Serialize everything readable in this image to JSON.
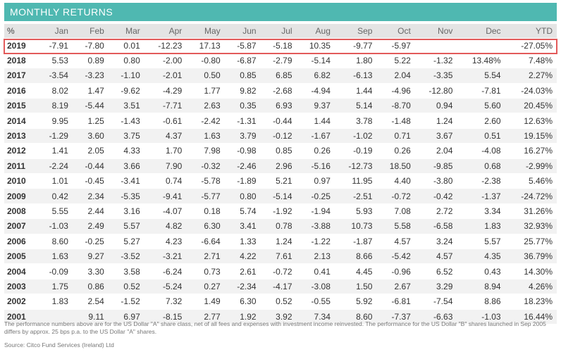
{
  "title": "MONTHLY RETURNS",
  "columns": [
    "%",
    "Jan",
    "Feb",
    "Mar",
    "Apr",
    "May",
    "Jun",
    "Jul",
    "Aug",
    "Sep",
    "Oct",
    "Nov",
    "Dec",
    "YTD"
  ],
  "highlighted_year": "2019",
  "highlight_color": "#e25a5a",
  "header_color": "#4fb8b1",
  "rows": [
    {
      "year": "2019",
      "values": [
        "-7.91",
        "-7.80",
        "0.01",
        "-12.23",
        "17.13",
        "-5.87",
        "-5.18",
        "10.35",
        "-9.77",
        "-5.97",
        "",
        "",
        "-27.05%"
      ]
    },
    {
      "year": "2018",
      "values": [
        "5.53",
        "0.89",
        "0.80",
        "-2.00",
        "-0.80",
        "-6.87",
        "-2.79",
        "-5.14",
        "1.80",
        "5.22",
        "-1.32",
        "13.48%",
        "7.48%"
      ]
    },
    {
      "year": "2017",
      "values": [
        "-3.54",
        "-3.23",
        "-1.10",
        "-2.01",
        "0.50",
        "0.85",
        "6.85",
        "6.82",
        "-6.13",
        "2.04",
        "-3.35",
        "5.54",
        "2.27%"
      ]
    },
    {
      "year": "2016",
      "values": [
        "8.02",
        "1.47",
        "-9.62",
        "-4.29",
        "1.77",
        "9.82",
        "-2.68",
        "-4.94",
        "1.44",
        "-4.96",
        "-12.80",
        "-7.81",
        "-24.03%"
      ]
    },
    {
      "year": "2015",
      "values": [
        "8.19",
        "-5.44",
        "3.51",
        "-7.71",
        "2.63",
        "0.35",
        "6.93",
        "9.37",
        "5.14",
        "-8.70",
        "0.94",
        "5.60",
        "20.45%"
      ]
    },
    {
      "year": "2014",
      "values": [
        "9.95",
        "1.25",
        "-1.43",
        "-0.61",
        "-2.42",
        "-1.31",
        "-0.44",
        "1.44",
        "3.78",
        "-1.48",
        "1.24",
        "2.60",
        "12.63%"
      ]
    },
    {
      "year": "2013",
      "values": [
        "-1.29",
        "3.60",
        "3.75",
        "4.37",
        "1.63",
        "3.79",
        "-0.12",
        "-1.67",
        "-1.02",
        "0.71",
        "3.67",
        "0.51",
        "19.15%"
      ]
    },
    {
      "year": "2012",
      "values": [
        "1.41",
        "2.05",
        "4.33",
        "1.70",
        "7.98",
        "-0.98",
        "0.85",
        "0.26",
        "-0.19",
        "0.26",
        "2.04",
        "-4.08",
        "16.27%"
      ]
    },
    {
      "year": "2011",
      "values": [
        "-2.24",
        "-0.44",
        "3.66",
        "7.90",
        "-0.32",
        "-2.46",
        "2.96",
        "-5.16",
        "-12.73",
        "18.50",
        "-9.85",
        "0.68",
        "-2.99%"
      ]
    },
    {
      "year": "2010",
      "values": [
        "1.01",
        "-0.45",
        "-3.41",
        "0.74",
        "-5.78",
        "-1.89",
        "5.21",
        "0.97",
        "11.95",
        "4.40",
        "-3.80",
        "-2.38",
        "5.46%"
      ]
    },
    {
      "year": "2009",
      "values": [
        "0.42",
        "2.34",
        "-5.35",
        "-9.41",
        "-5.77",
        "0.80",
        "-5.14",
        "-0.25",
        "-2.51",
        "-0.72",
        "-0.42",
        "-1.37",
        "-24.72%"
      ]
    },
    {
      "year": "2008",
      "values": [
        "5.55",
        "2.44",
        "3.16",
        "-4.07",
        "0.18",
        "5.74",
        "-1.92",
        "-1.94",
        "5.93",
        "7.08",
        "2.72",
        "3.34",
        "31.26%"
      ]
    },
    {
      "year": "2007",
      "values": [
        "-1.03",
        "2.49",
        "5.57",
        "4.82",
        "6.30",
        "3.41",
        "0.78",
        "-3.88",
        "10.73",
        "5.58",
        "-6.58",
        "1.83",
        "32.93%"
      ]
    },
    {
      "year": "2006",
      "values": [
        "8.60",
        "-0.25",
        "5.27",
        "4.23",
        "-6.64",
        "1.33",
        "1.24",
        "-1.22",
        "-1.87",
        "4.57",
        "3.24",
        "5.57",
        "25.77%"
      ]
    },
    {
      "year": "2005",
      "values": [
        "1.63",
        "9.27",
        "-3.52",
        "-3.21",
        "2.71",
        "4.22",
        "7.61",
        "2.13",
        "8.66",
        "-5.42",
        "4.57",
        "4.35",
        "36.79%"
      ]
    },
    {
      "year": "2004",
      "values": [
        "-0.09",
        "3.30",
        "3.58",
        "-6.24",
        "0.73",
        "2.61",
        "-0.72",
        "0.41",
        "4.45",
        "-0.96",
        "6.52",
        "0.43",
        "14.30%"
      ]
    },
    {
      "year": "2003",
      "values": [
        "1.75",
        "0.86",
        "0.52",
        "-5.24",
        "0.27",
        "-2.34",
        "-4.17",
        "-3.08",
        "1.50",
        "2.67",
        "3.29",
        "8.94",
        "4.26%"
      ]
    },
    {
      "year": "2002",
      "values": [
        "1.83",
        "2.54",
        "-1.52",
        "7.32",
        "1.49",
        "6.30",
        "0.52",
        "-0.55",
        "5.92",
        "-6.81",
        "-7.54",
        "8.86",
        "18.23%"
      ]
    },
    {
      "year": "2001",
      "values": [
        "",
        "9.11",
        "6.97",
        "-8.15",
        "2.77",
        "1.92",
        "3.92",
        "7.34",
        "8.60",
        "-7.37",
        "-6.63",
        "-1.03",
        "16.44%"
      ]
    }
  ],
  "footnote": "The performance numbers above are for the US Dollar \"A\" share class, net of all fees and expenses with investment income reinvested. The performance for the US Dollar \"B\" shares launched in Sep 2005 differs by approx. 25 bps p.a. to the US Dollar \"A\" shares.",
  "source": "Source: Citco Fund Services (Ireland) Ltd"
}
